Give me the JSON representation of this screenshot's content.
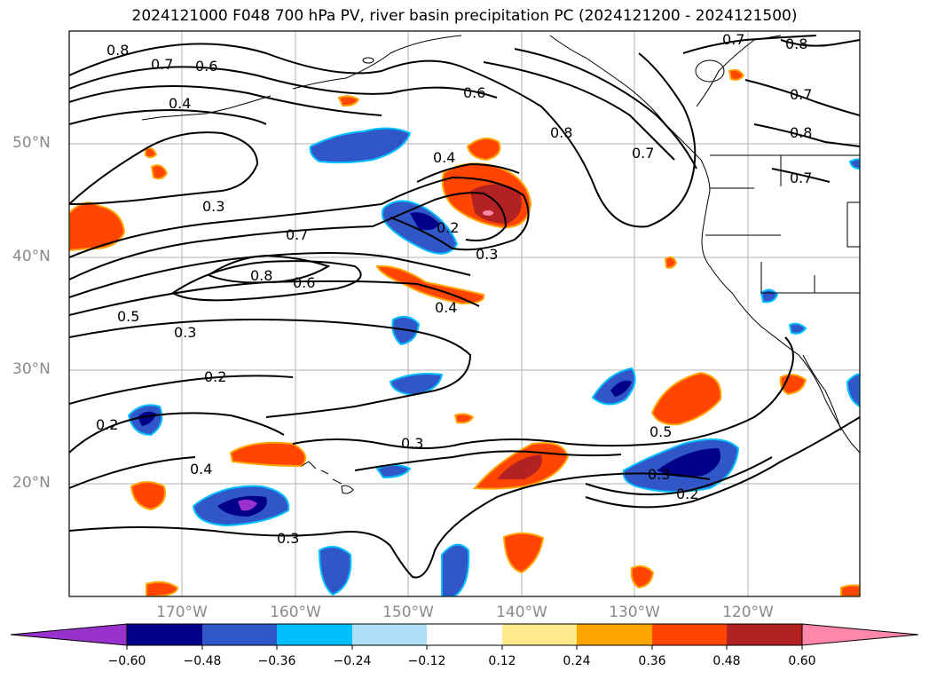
{
  "title": "2024121000 F048 700 hPa PV, river basin precipitation PC (2024121200 - 2024121500)",
  "lat_ticks": [
    "50°N",
    "40°N",
    "30°N",
    "20°N"
  ],
  "lon_ticks": [
    "170°W",
    "160°W",
    "150°W",
    "140°W",
    "130°W",
    "120°W"
  ],
  "colorbar": {
    "tick_labels": [
      "−0.60",
      "−0.48",
      "−0.36",
      "−0.24",
      "−0.12",
      "0.12",
      "0.24",
      "0.36",
      "0.48",
      "0.60"
    ],
    "colors": [
      "#9932cc",
      "#00008b",
      "#3056c8",
      "#00bfff",
      "#b0e0f8",
      "#ffffff",
      "#ffe98a",
      "#ffa500",
      "#ff4500",
      "#b22222",
      "#ff88aa"
    ]
  },
  "contour_labels": [
    "0.8",
    "0.7",
    "0.6",
    "0.4",
    "0.3",
    "0.7",
    "0.8",
    "0.6",
    "0.5",
    "0.3",
    "0.2",
    "0.2",
    "0.4",
    "0.3",
    "0.4",
    "0.6",
    "0.8",
    "0.7",
    "0.3",
    "0.2",
    "0.4",
    "0.5",
    "0.3",
    "0.2",
    "0.7",
    "0.8",
    "0.7",
    "0.8",
    "0.7"
  ]
}
